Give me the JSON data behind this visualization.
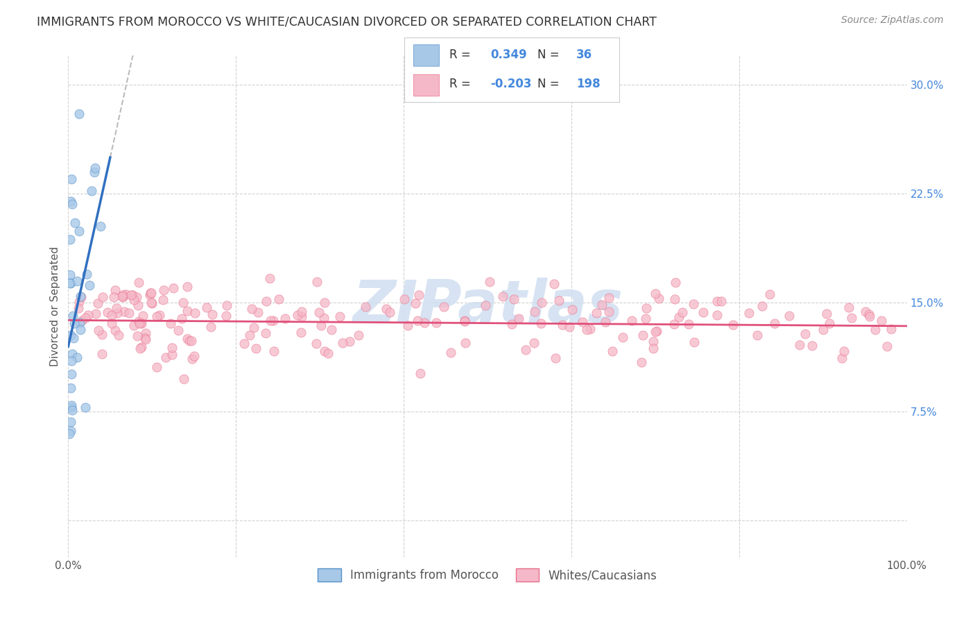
{
  "title": "IMMIGRANTS FROM MOROCCO VS WHITE/CAUCASIAN DIVORCED OR SEPARATED CORRELATION CHART",
  "source": "Source: ZipAtlas.com",
  "ylabel": "Divorced or Separated",
  "xlim": [
    0,
    1.0
  ],
  "ylim": [
    -0.025,
    0.32
  ],
  "x_ticks": [
    0.0,
    0.2,
    0.4,
    0.6,
    0.8,
    1.0
  ],
  "x_tick_labels": [
    "0.0%",
    "",
    "",
    "",
    "",
    "100.0%"
  ],
  "y_ticks": [
    0.0,
    0.075,
    0.15,
    0.225,
    0.3
  ],
  "y_tick_labels": [
    "",
    "7.5%",
    "15.0%",
    "22.5%",
    "30.0%"
  ],
  "legend_labels": [
    "Immigrants from Morocco",
    "Whites/Caucasians"
  ],
  "R_morocco": 0.349,
  "N_morocco": 36,
  "R_white": -0.203,
  "N_white": 198,
  "blue_color": "#a8c8e8",
  "pink_color": "#f5b8c8",
  "blue_edge_color": "#5590c8",
  "pink_edge_color": "#e8708a",
  "blue_line_color": "#3070c0",
  "pink_line_color": "#e0507a",
  "dash_color": "#bbbbbb",
  "watermark_color": "#d0dff0",
  "background_color": "#ffffff",
  "grid_color": "#cccccc",
  "title_color": "#333333",
  "source_color": "#888888",
  "tick_color_right": "#4488dd",
  "tick_color_bottom": "#555555"
}
